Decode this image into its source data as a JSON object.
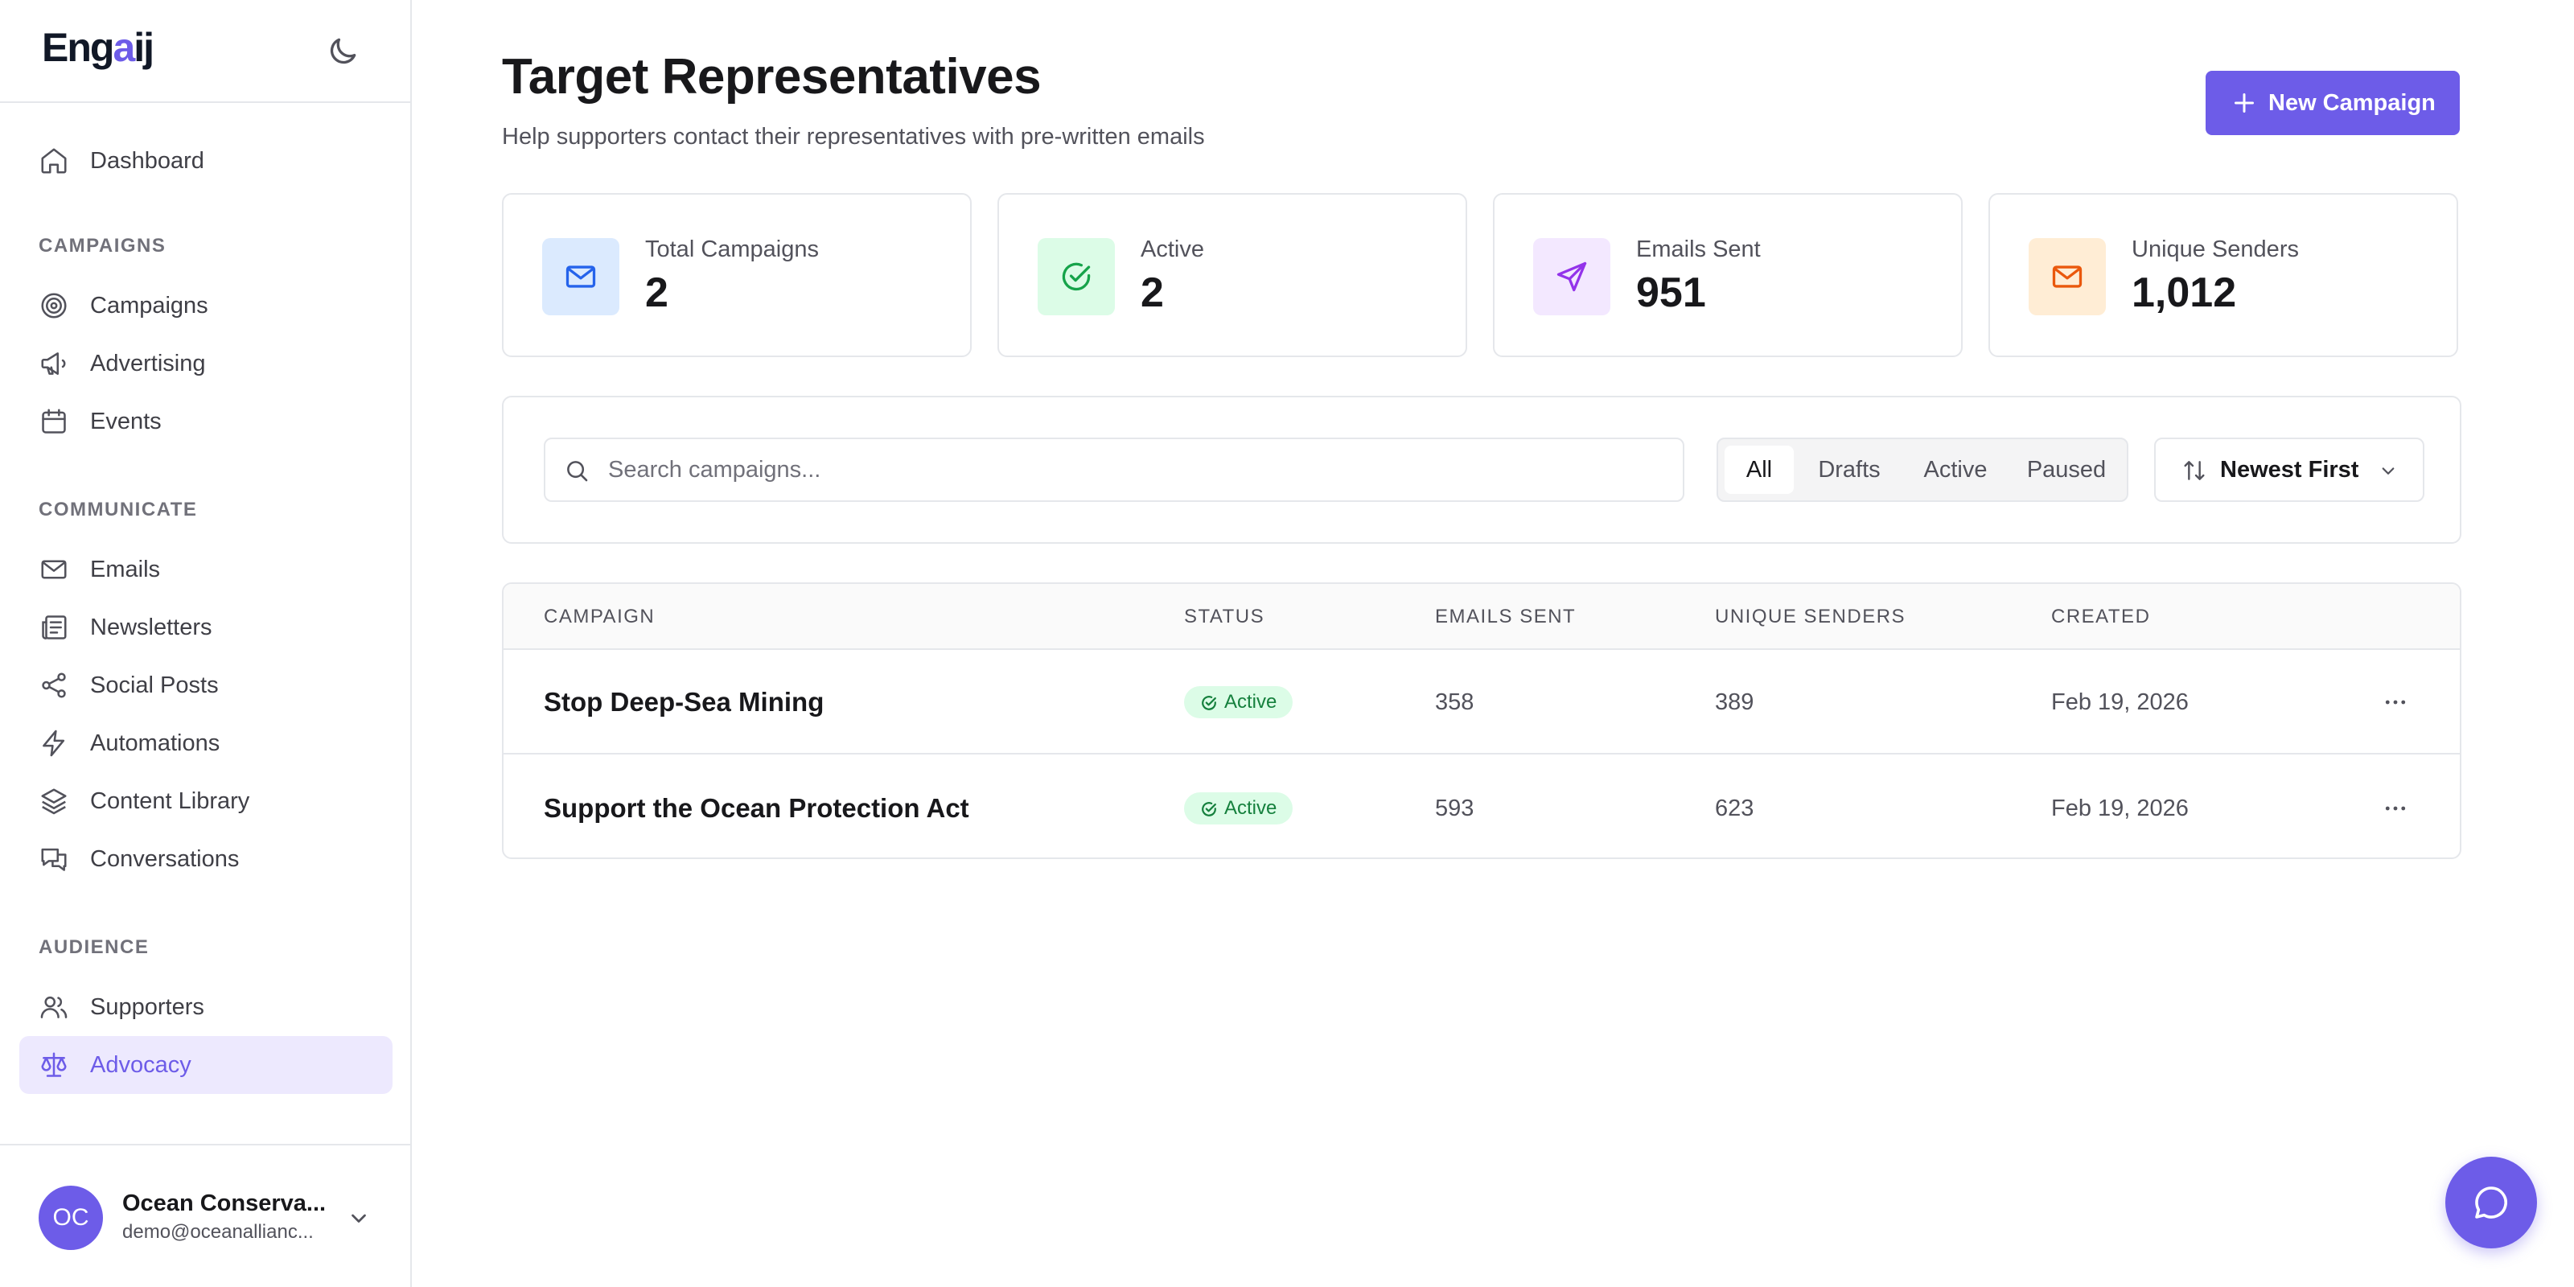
{
  "app": {
    "logo_main": "Eng",
    "logo_accent": "a",
    "logo_end": "ij"
  },
  "sidebar": {
    "items": [
      {
        "label": "Dashboard",
        "icon": "home-icon"
      },
      {
        "label": "Campaigns",
        "icon": "target-icon"
      },
      {
        "label": "Advertising",
        "icon": "megaphone-icon"
      },
      {
        "label": "Events",
        "icon": "calendar-icon"
      },
      {
        "label": "Emails",
        "icon": "mail-icon"
      },
      {
        "label": "Newsletters",
        "icon": "newspaper-icon"
      },
      {
        "label": "Social Posts",
        "icon": "share-icon"
      },
      {
        "label": "Automations",
        "icon": "bolt-icon"
      },
      {
        "label": "Content Library",
        "icon": "layers-icon"
      },
      {
        "label": "Conversations",
        "icon": "chat-bubbles-icon"
      },
      {
        "label": "Supporters",
        "icon": "users-icon"
      },
      {
        "label": "Advocacy",
        "icon": "scale-icon",
        "active": true
      }
    ],
    "sections": {
      "campaigns": "CAMPAIGNS",
      "communicate": "COMMUNICATE",
      "audience": "AUDIENCE"
    },
    "footer": {
      "avatar_initials": "OC",
      "org_name": "Ocean Conserva...",
      "org_email": "demo@oceanallianc..."
    }
  },
  "header": {
    "title": "Target Representatives",
    "subtitle": "Help supporters contact their representatives with pre-written emails",
    "new_button": "New Campaign"
  },
  "stats": [
    {
      "label": "Total Campaigns",
      "value": "2",
      "icon": "mail-icon",
      "bg": "#dbeafe",
      "color": "#2563eb"
    },
    {
      "label": "Active",
      "value": "2",
      "icon": "check-circle-icon",
      "bg": "#dcfce7",
      "color": "#16a34a"
    },
    {
      "label": "Emails Sent",
      "value": "951",
      "icon": "send-icon",
      "bg": "#f3e8ff",
      "color": "#9333ea"
    },
    {
      "label": "Unique Senders",
      "value": "1,012",
      "icon": "mail-icon",
      "bg": "#ffedd5",
      "color": "#ea580c"
    }
  ],
  "filters": {
    "search_placeholder": "Search campaigns...",
    "tabs": [
      "All",
      "Drafts",
      "Active",
      "Paused"
    ],
    "selected_tab": "All",
    "sort_label": "Newest First"
  },
  "table": {
    "columns": [
      "CAMPAIGN",
      "STATUS",
      "EMAILS SENT",
      "UNIQUE SENDERS",
      "CREATED"
    ],
    "rows": [
      {
        "campaign": "Stop Deep-Sea Mining",
        "status": "Active",
        "emails_sent": "358",
        "unique_senders": "389",
        "created": "Feb 19, 2026"
      },
      {
        "campaign": "Support the Ocean Protection Act",
        "status": "Active",
        "emails_sent": "593",
        "unique_senders": "623",
        "created": "Feb 19, 2026"
      }
    ]
  },
  "colors": {
    "accent": "#6d5ce8",
    "active_badge_bg": "#dcfce7",
    "active_badge_text": "#15803d"
  }
}
